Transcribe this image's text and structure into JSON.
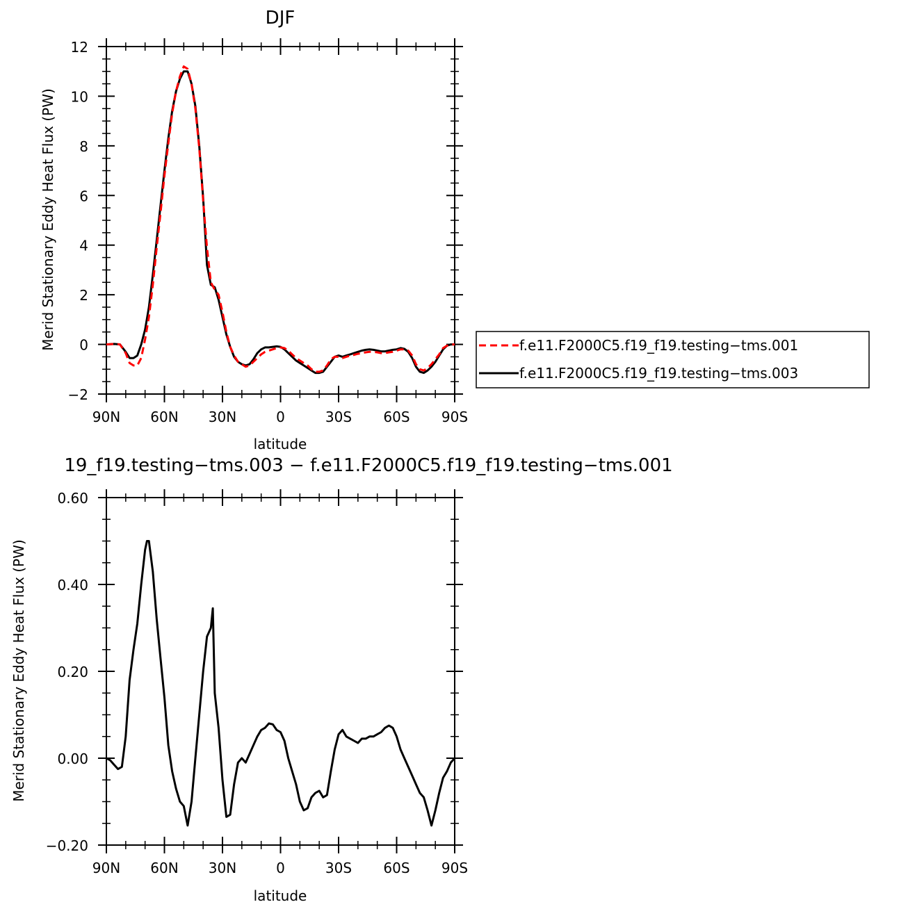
{
  "colors": {
    "series_a": "#ff0000",
    "series_b": "#000000"
  },
  "chart_data": [
    {
      "type": "line",
      "title": "DJF",
      "xlabel": "latitude",
      "ylabel": "Merid Stationary Eddy Heat Flux (PW)",
      "xlim": [
        90,
        -90
      ],
      "ylim": [
        -2,
        12
      ],
      "xticks": [
        90,
        60,
        30,
        0,
        -30,
        -60,
        -90
      ],
      "xtick_labels": [
        "90N",
        "60N",
        "30N",
        "0",
        "30S",
        "60S",
        "90S"
      ],
      "yticks": [
        -2,
        0,
        2,
        4,
        6,
        8,
        10,
        12
      ],
      "ytick_labels": [
        "−2",
        "0",
        "2",
        "4",
        "6",
        "8",
        "10",
        "12"
      ],
      "legend": "right",
      "grid": false,
      "series": [
        {
          "name": "f.e11.F2000C5.f19_f19.testing−tms.001",
          "style": "dashed",
          "color": "#ff0000",
          "x": [
            90,
            86,
            83,
            80,
            78,
            76,
            74,
            72,
            70,
            68,
            66,
            64,
            62,
            60,
            58,
            56,
            54,
            52,
            50,
            48,
            46,
            44,
            42,
            40,
            38,
            36,
            34,
            32,
            30,
            28,
            26,
            24,
            22,
            20,
            18,
            16,
            14,
            12,
            10,
            8,
            6,
            4,
            2,
            0,
            -2,
            -4,
            -6,
            -8,
            -10,
            -12,
            -14,
            -16,
            -18,
            -20,
            -22,
            -24,
            -26,
            -28,
            -30,
            -32,
            -34,
            -36,
            -38,
            -40,
            -42,
            -44,
            -46,
            -48,
            -50,
            -52,
            -54,
            -56,
            -58,
            -60,
            -62,
            -64,
            -66,
            -68,
            -70,
            -72,
            -74,
            -76,
            -78,
            -80,
            -82,
            -84,
            -86,
            -88,
            -90
          ],
          "y": [
            0.0,
            0.02,
            0.0,
            -0.35,
            -0.75,
            -0.85,
            -0.85,
            -0.55,
            0.2,
            1.1,
            2.4,
            3.9,
            5.3,
            6.8,
            8.1,
            9.3,
            10.2,
            10.8,
            11.2,
            11.1,
            10.5,
            9.5,
            7.9,
            5.8,
            3.9,
            2.5,
            2.2,
            2.0,
            1.3,
            0.5,
            -0.1,
            -0.45,
            -0.7,
            -0.8,
            -0.9,
            -0.85,
            -0.7,
            -0.55,
            -0.4,
            -0.3,
            -0.25,
            -0.2,
            -0.15,
            -0.12,
            -0.15,
            -0.25,
            -0.4,
            -0.55,
            -0.65,
            -0.75,
            -0.85,
            -1.0,
            -1.1,
            -1.1,
            -1.05,
            -0.85,
            -0.6,
            -0.5,
            -0.5,
            -0.55,
            -0.5,
            -0.45,
            -0.42,
            -0.38,
            -0.35,
            -0.32,
            -0.3,
            -0.3,
            -0.32,
            -0.35,
            -0.35,
            -0.32,
            -0.3,
            -0.25,
            -0.2,
            -0.2,
            -0.25,
            -0.45,
            -0.8,
            -1.0,
            -1.05,
            -0.95,
            -0.8,
            -0.6,
            -0.4,
            -0.15,
            -0.05,
            0.0,
            0.0
          ]
        },
        {
          "name": "f.e11.F2000C5.f19_f19.testing−tms.003",
          "style": "solid",
          "color": "#000000",
          "x": [
            90,
            86,
            83,
            80,
            78,
            76,
            74,
            72,
            70,
            68,
            66,
            64,
            62,
            60,
            58,
            56,
            54,
            52,
            50,
            48,
            46,
            44,
            42,
            40,
            38,
            36,
            34,
            32,
            30,
            28,
            26,
            24,
            22,
            20,
            18,
            16,
            14,
            12,
            10,
            8,
            6,
            4,
            2,
            0,
            -2,
            -4,
            -6,
            -8,
            -10,
            -12,
            -14,
            -16,
            -18,
            -20,
            -22,
            -24,
            -26,
            -28,
            -30,
            -32,
            -34,
            -36,
            -38,
            -40,
            -42,
            -44,
            -46,
            -48,
            -50,
            -52,
            -54,
            -56,
            -58,
            -60,
            -62,
            -64,
            -66,
            -68,
            -70,
            -72,
            -74,
            -76,
            -78,
            -80,
            -82,
            -84,
            -86,
            -88,
            -90
          ],
          "y": [
            0.0,
            0.02,
            0.0,
            -0.3,
            -0.55,
            -0.55,
            -0.45,
            0.0,
            0.6,
            1.5,
            2.8,
            4.2,
            5.6,
            7.0,
            8.3,
            9.4,
            10.2,
            10.7,
            11.0,
            11.0,
            10.5,
            9.6,
            8.0,
            5.9,
            3.2,
            2.4,
            2.3,
            1.8,
            1.1,
            0.4,
            -0.1,
            -0.5,
            -0.7,
            -0.8,
            -0.85,
            -0.8,
            -0.6,
            -0.35,
            -0.2,
            -0.12,
            -0.12,
            -0.1,
            -0.08,
            -0.1,
            -0.2,
            -0.35,
            -0.5,
            -0.65,
            -0.75,
            -0.85,
            -0.95,
            -1.05,
            -1.15,
            -1.15,
            -1.1,
            -0.9,
            -0.7,
            -0.5,
            -0.45,
            -0.5,
            -0.45,
            -0.4,
            -0.35,
            -0.3,
            -0.25,
            -0.22,
            -0.2,
            -0.22,
            -0.25,
            -0.28,
            -0.28,
            -0.25,
            -0.22,
            -0.2,
            -0.15,
            -0.18,
            -0.3,
            -0.55,
            -0.9,
            -1.1,
            -1.15,
            -1.05,
            -0.9,
            -0.7,
            -0.45,
            -0.2,
            -0.05,
            0.0,
            0.0
          ]
        }
      ]
    },
    {
      "type": "line",
      "title": "19_f19.testing−tms.003 − f.e11.F2000C5.f19_f19.testing−tms.001",
      "xlabel": "latitude",
      "ylabel": "Merid Stationary Eddy Heat Flux (PW)",
      "xlim": [
        90,
        -90
      ],
      "ylim": [
        -0.2,
        0.6
      ],
      "xticks": [
        90,
        60,
        30,
        0,
        -30,
        -60,
        -90
      ],
      "xtick_labels": [
        "90N",
        "60N",
        "30N",
        "0",
        "30S",
        "60S",
        "90S"
      ],
      "yticks": [
        -0.2,
        0.0,
        0.2,
        0.4,
        0.6
      ],
      "ytick_labels": [
        "−0.20",
        "0.00",
        "0.20",
        "0.40",
        "0.60"
      ],
      "grid": false,
      "series": [
        {
          "style": "solid",
          "color": "#000000",
          "x": [
            90,
            88,
            86,
            84,
            82,
            80,
            78,
            76,
            74,
            72,
            71,
            70,
            69,
            68,
            66,
            64,
            62,
            60,
            58,
            56,
            54,
            52,
            50,
            48,
            46,
            44,
            42,
            40,
            38,
            36,
            35,
            34,
            32,
            30,
            28,
            26,
            24,
            22,
            20,
            18,
            16,
            14,
            12,
            10,
            8,
            6,
            4,
            2,
            0,
            -2,
            -4,
            -6,
            -8,
            -10,
            -12,
            -14,
            -16,
            -18,
            -20,
            -22,
            -24,
            -26,
            -28,
            -30,
            -32,
            -34,
            -36,
            -38,
            -40,
            -42,
            -44,
            -46,
            -48,
            -50,
            -52,
            -54,
            -56,
            -58,
            -60,
            -62,
            -64,
            -66,
            -68,
            -70,
            -72,
            -74,
            -76,
            -78,
            -80,
            -82,
            -84,
            -86,
            -88,
            -90
          ],
          "y": [
            0.0,
            -0.005,
            -0.015,
            -0.025,
            -0.02,
            0.05,
            0.18,
            0.25,
            0.31,
            0.4,
            0.44,
            0.48,
            0.5,
            0.5,
            0.43,
            0.32,
            0.23,
            0.14,
            0.03,
            -0.03,
            -0.07,
            -0.1,
            -0.11,
            -0.155,
            -0.1,
            0.0,
            0.1,
            0.2,
            0.28,
            0.3,
            0.345,
            0.15,
            0.07,
            -0.05,
            -0.135,
            -0.13,
            -0.06,
            -0.01,
            0.0,
            -0.01,
            0.01,
            0.03,
            0.05,
            0.065,
            0.07,
            0.08,
            0.078,
            0.065,
            0.06,
            0.04,
            0.0,
            -0.03,
            -0.06,
            -0.1,
            -0.12,
            -0.115,
            -0.09,
            -0.08,
            -0.075,
            -0.09,
            -0.085,
            -0.03,
            0.02,
            0.055,
            0.065,
            0.05,
            0.045,
            0.04,
            0.035,
            0.045,
            0.045,
            0.05,
            0.05,
            0.055,
            0.06,
            0.07,
            0.075,
            0.07,
            0.05,
            0.02,
            0.0,
            -0.02,
            -0.04,
            -0.06,
            -0.08,
            -0.09,
            -0.12,
            -0.155,
            -0.12,
            -0.08,
            -0.045,
            -0.03,
            -0.01,
            0.0
          ]
        }
      ]
    }
  ]
}
